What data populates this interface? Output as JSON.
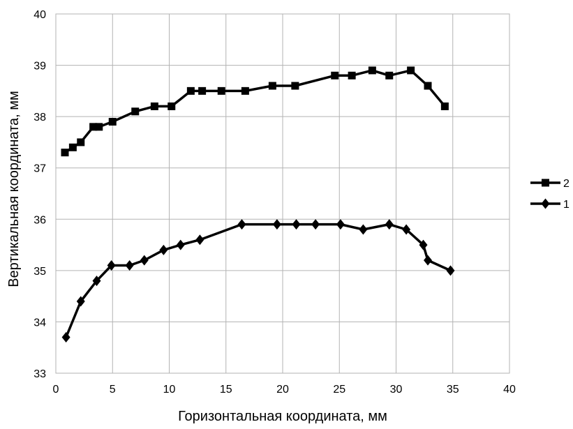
{
  "chart_data": {
    "type": "line",
    "title": "",
    "xlabel": "Горизонтальная координата, мм",
    "ylabel": "Вертикальная координата, мм",
    "xlim": [
      0,
      40
    ],
    "ylim": [
      33,
      40
    ],
    "xticks": [
      0,
      5,
      10,
      15,
      20,
      25,
      30,
      35,
      40
    ],
    "yticks": [
      33,
      34,
      35,
      36,
      37,
      38,
      39,
      40
    ],
    "grid": true,
    "legend_position": "right",
    "series": [
      {
        "name": "2",
        "marker": "square",
        "color": "#000000",
        "x": [
          0.8,
          1.5,
          2.2,
          3.3,
          3.8,
          5.0,
          7.0,
          8.7,
          10.2,
          11.9,
          12.9,
          14.6,
          16.7,
          19.1,
          21.1,
          24.6,
          26.1,
          27.9,
          29.4,
          31.3,
          32.8,
          34.3
        ],
        "y": [
          37.3,
          37.4,
          37.5,
          37.8,
          37.8,
          37.9,
          38.1,
          38.2,
          38.2,
          38.5,
          38.5,
          38.5,
          38.5,
          38.6,
          38.6,
          38.8,
          38.8,
          38.9,
          38.8,
          38.9,
          38.6,
          38.2
        ]
      },
      {
        "name": "1",
        "marker": "diamond",
        "color": "#000000",
        "x": [
          0.9,
          2.2,
          3.6,
          4.9,
          6.5,
          7.8,
          9.5,
          11.0,
          12.7,
          16.4,
          19.5,
          21.2,
          22.9,
          25.1,
          27.1,
          29.4,
          30.9,
          32.4,
          32.8,
          34.8
        ],
        "y": [
          33.7,
          34.4,
          34.8,
          35.1,
          35.1,
          35.2,
          35.4,
          35.5,
          35.6,
          35.9,
          35.9,
          35.9,
          35.9,
          35.9,
          35.8,
          35.9,
          35.8,
          35.5,
          35.2,
          35.0
        ]
      }
    ]
  }
}
